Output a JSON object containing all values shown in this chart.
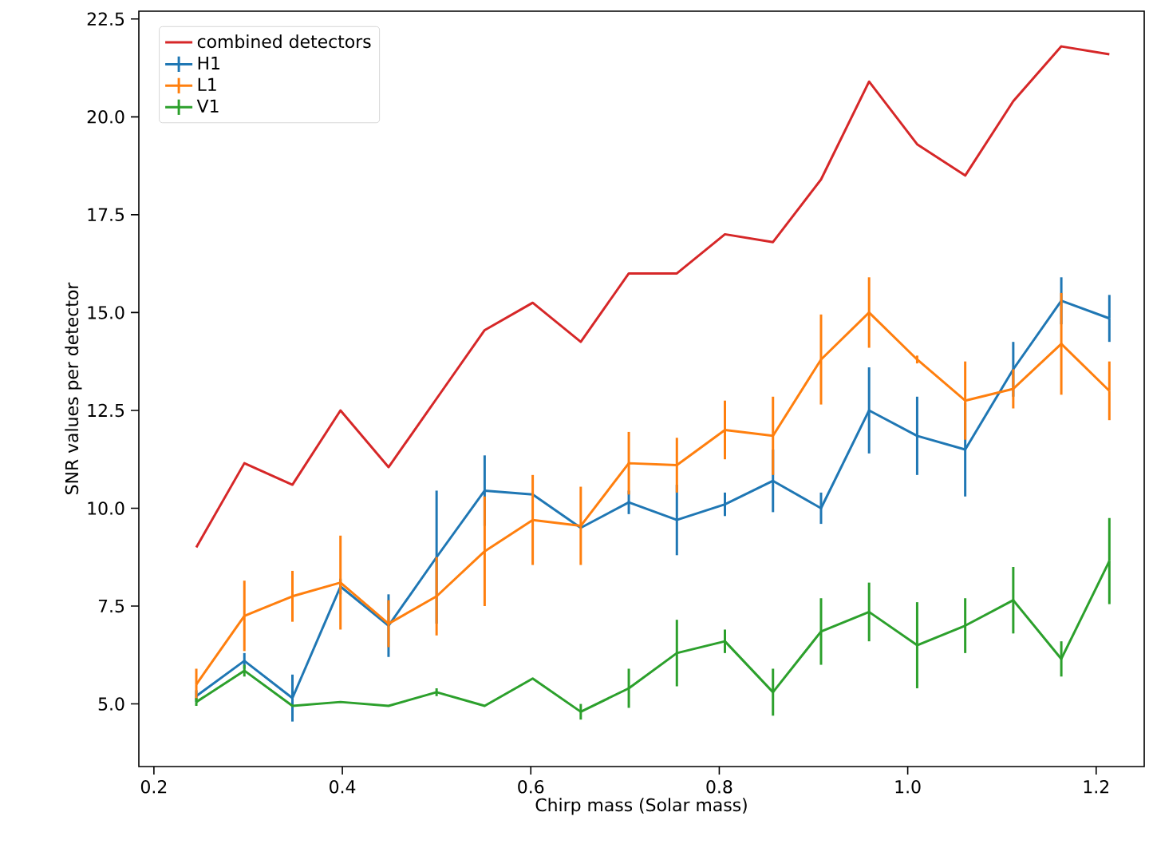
{
  "chart_data": {
    "type": "line",
    "xlabel": "Chirp mass (Solar mass)",
    "ylabel": "SNR values per detector",
    "x": [
      0.245,
      0.296,
      0.347,
      0.398,
      0.449,
      0.5,
      0.551,
      0.602,
      0.653,
      0.704,
      0.755,
      0.806,
      0.857,
      0.908,
      0.959,
      1.01,
      1.061,
      1.112,
      1.163,
      1.214
    ],
    "series": [
      {
        "name": "combined detectors",
        "color": "#d62728",
        "values": [
          9.0,
          11.15,
          10.6,
          12.5,
          11.05,
          12.8,
          14.55,
          15.25,
          14.25,
          16.0,
          16.0,
          17.0,
          16.8,
          18.4,
          20.9,
          19.3,
          18.5,
          20.4,
          21.8,
          21.6
        ]
      },
      {
        "name": "H1",
        "color": "#1f77b4",
        "values": [
          5.2,
          6.1,
          5.15,
          8.0,
          7.0,
          8.75,
          10.45,
          10.35,
          9.5,
          10.15,
          9.7,
          10.1,
          10.7,
          10.0,
          12.5,
          11.85,
          11.5,
          13.55,
          15.3,
          14.85
        ],
        "errors": [
          0.15,
          0.2,
          0.6,
          0.2,
          0.8,
          1.7,
          0.9,
          null,
          null,
          0.3,
          0.9,
          0.3,
          0.8,
          0.4,
          1.1,
          1.0,
          1.2,
          0.7,
          0.6,
          0.6
        ]
      },
      {
        "name": "L1",
        "color": "#ff7f0e",
        "values": [
          5.5,
          7.25,
          7.75,
          8.1,
          7.05,
          7.75,
          8.9,
          9.7,
          9.55,
          11.15,
          11.1,
          12.0,
          11.85,
          13.8,
          15.0,
          13.8,
          12.75,
          13.05,
          14.2,
          13.0
        ],
        "errors": [
          0.4,
          0.9,
          0.65,
          1.2,
          0.6,
          1.0,
          1.4,
          1.15,
          1.0,
          0.8,
          0.7,
          0.75,
          1.0,
          1.15,
          0.9,
          0.1,
          1.0,
          0.5,
          1.3,
          0.75
        ]
      },
      {
        "name": "V1",
        "color": "#2ca02c",
        "values": [
          5.05,
          5.85,
          4.95,
          5.05,
          4.95,
          5.3,
          4.95,
          5.65,
          4.8,
          5.4,
          6.3,
          6.6,
          5.3,
          6.85,
          7.35,
          6.5,
          7.0,
          7.65,
          6.15,
          8.65
        ],
        "errors": [
          0.1,
          0.15,
          null,
          null,
          null,
          0.1,
          null,
          null,
          0.2,
          0.5,
          0.85,
          0.3,
          0.6,
          0.85,
          0.75,
          1.1,
          0.7,
          0.85,
          0.45,
          1.1
        ]
      }
    ],
    "xlim": [
      0.184,
      1.251
    ],
    "ylim": [
      3.4,
      22.7
    ],
    "xticks": [
      0.2,
      0.4,
      0.6,
      0.8,
      {
        "value": 1,
        "label": "1.0"
      },
      1.2
    ],
    "yticks": [
      {
        "value": 5,
        "label": "5.0"
      },
      7.5,
      {
        "value": 10,
        "label": "10.0"
      },
      12.5,
      {
        "value": 15,
        "label": "15.0"
      },
      17.5,
      {
        "value": 20,
        "label": "20.0"
      },
      22.5
    ],
    "legend": "top left",
    "grid": false,
    "marker": "none",
    "line_style": "solid"
  }
}
